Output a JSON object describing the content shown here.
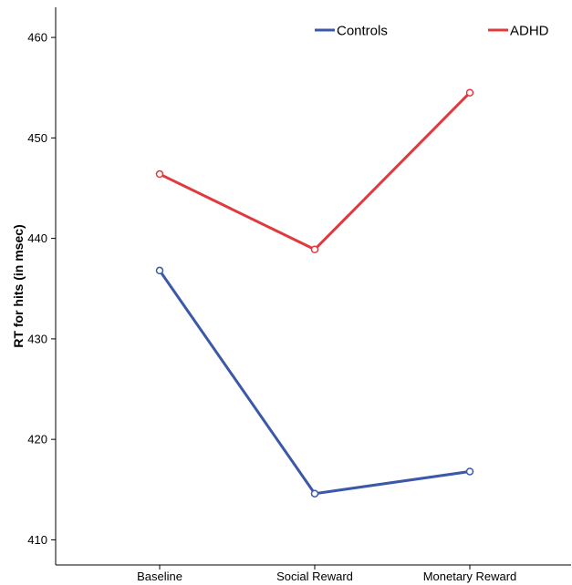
{
  "chart_data": {
    "type": "line",
    "title": "",
    "xlabel": "",
    "ylabel": "RT for hits (in msec)",
    "categories": [
      "Baseline",
      "Social Reward",
      "Monetary Reward"
    ],
    "y_ticks": [
      410,
      420,
      430,
      440,
      450,
      460
    ],
    "ylim": [
      407.5,
      463
    ],
    "grid": false,
    "legend_position": "top",
    "series": [
      {
        "name": "Controls",
        "color": "#3c58a8",
        "values": [
          436.8,
          414.6,
          416.8
        ]
      },
      {
        "name": "ADHD",
        "color": "#e0393e",
        "values": [
          446.4,
          438.9,
          454.5
        ]
      }
    ]
  }
}
